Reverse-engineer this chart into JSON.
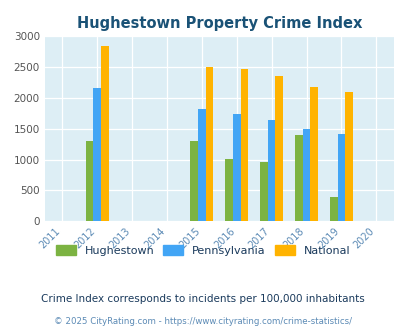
{
  "title": "Hughestown Property Crime Index",
  "all_years": [
    2011,
    2012,
    2013,
    2014,
    2015,
    2016,
    2017,
    2018,
    2019,
    2020
  ],
  "data_years": [
    2012,
    2015,
    2016,
    2017,
    2018,
    2019
  ],
  "hughestown": [
    1300,
    1300,
    1010,
    960,
    1390,
    390
  ],
  "pennsylvania": [
    2160,
    1820,
    1740,
    1640,
    1490,
    1420
  ],
  "national": [
    2850,
    2500,
    2470,
    2360,
    2185,
    2100
  ],
  "bar_width": 0.22,
  "ylim": [
    0,
    3000
  ],
  "yticks": [
    0,
    500,
    1000,
    1500,
    2000,
    2500,
    3000
  ],
  "color_hughestown": "#7cb342",
  "color_pennsylvania": "#42a5f5",
  "color_national": "#ffb300",
  "bg_color": "#ddeef5",
  "title_color": "#1a5276",
  "legend_label_hughestown": "Hughestown",
  "legend_label_pennsylvania": "Pennsylvania",
  "legend_label_national": "National",
  "footnote1": "Crime Index corresponds to incidents per 100,000 inhabitants",
  "footnote2": "© 2025 CityRating.com - https://www.cityrating.com/crime-statistics/",
  "tick_color": "#5b8ab5",
  "ytick_color": "#555555",
  "legend_text_color": "#1a3a5c",
  "footnote1_color": "#1a3a5c",
  "footnote2_color": "#5b8ab5"
}
